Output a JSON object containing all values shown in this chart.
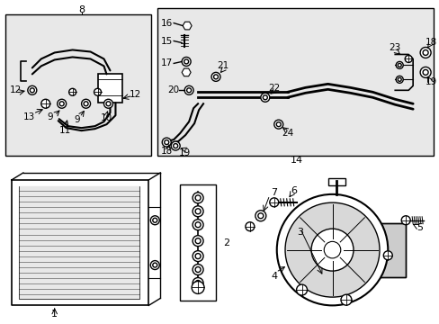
{
  "bg_color": "#ffffff",
  "fig_width": 4.89,
  "fig_height": 3.6,
  "dpi": 100,
  "line_color": "#000000",
  "box_fill": "#e8e8e8",
  "white": "#ffffff",
  "gray_light": "#d4d4d4",
  "gray_med": "#b0b0b0"
}
